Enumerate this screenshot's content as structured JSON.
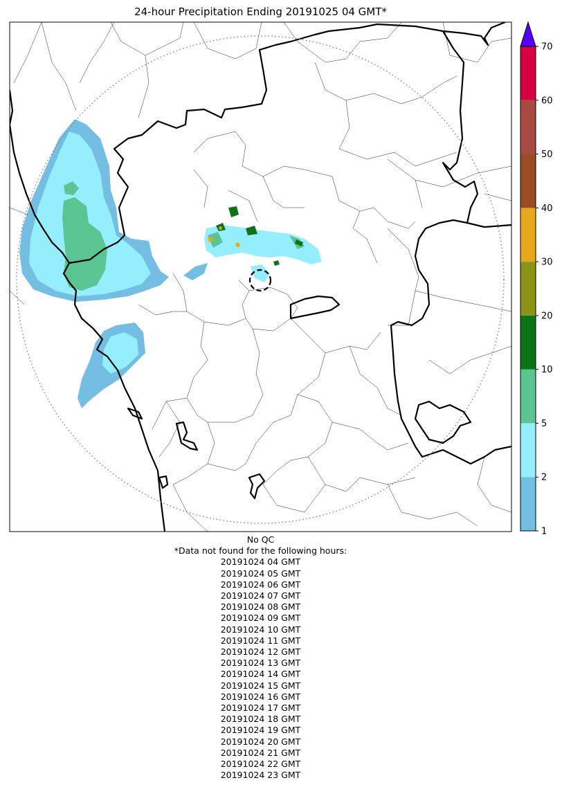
{
  "title": "24-hour Precipitation Ending 20191025 04 GMT*",
  "colorbar": {
    "ticks": [
      "1",
      "2",
      "5",
      "10",
      "20",
      "30",
      "40",
      "50",
      "60",
      "70"
    ],
    "colors": [
      "#74bde3",
      "#95eefb",
      "#5bc493",
      "#0e7318",
      "#8b9417",
      "#e6a81a",
      "#9a4c23",
      "#a74a42",
      "#d60142"
    ],
    "extend_color": "#5500ff"
  },
  "notes": {
    "qc": "No QC",
    "missing_header": "*Data not found for the following hours:",
    "missing_hours": [
      "20191024 04 GMT",
      "20191024 05 GMT",
      "20191024 06 GMT",
      "20191024 07 GMT",
      "20191024 08 GMT",
      "20191024 09 GMT",
      "20191024 10 GMT",
      "20191024 11 GMT",
      "20191024 12 GMT",
      "20191024 13 GMT",
      "20191024 14 GMT",
      "20191024 15 GMT",
      "20191024 16 GMT",
      "20191024 17 GMT",
      "20191024 18 GMT",
      "20191024 19 GMT",
      "20191024 20 GMT",
      "20191024 21 GMT",
      "20191024 22 GMT",
      "20191024 23 GMT"
    ]
  }
}
